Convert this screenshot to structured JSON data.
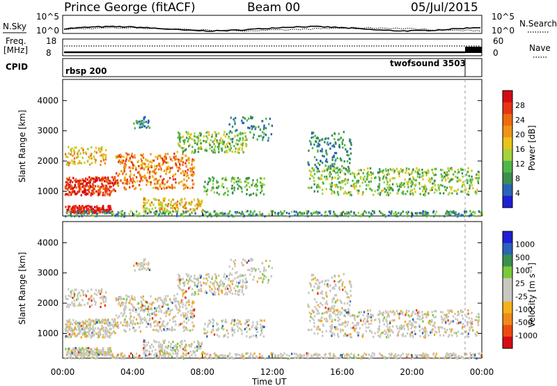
{
  "header": {
    "station": "Prince George (fitACF)",
    "beam": "Beam 00",
    "date": "05/Jul/2015"
  },
  "top_panels": {
    "nsky_label": "N.Sky",
    "nsky_axis": {
      "top": "10^5",
      "bottom": "10^0"
    },
    "nsearch_label": "N.Search",
    "nsearch_axis": {
      "top": "10^5",
      "bottom": "10^0"
    },
    "freq_label_1": "Freq.",
    "freq_label_2": "[MHz]",
    "freq_axis": {
      "top": "18",
      "bottom": "8"
    },
    "nave_label": "Nave",
    "nave_axis": {
      "top": "60",
      "bottom": "0"
    },
    "cpid_label": "CPID",
    "cpid_left": "rbsp 200",
    "cpid_right": "twofsound 3503"
  },
  "chart_data": [
    {
      "type": "heatmap",
      "name": "power",
      "ylabel": "Slant Range [km]",
      "yticks": [
        "1000",
        "2000",
        "3000",
        "4000"
      ],
      "ylim": [
        180,
        4700
      ],
      "xlim": [
        0,
        24
      ],
      "colorbar": {
        "label": "Power [dB]",
        "ticks": [
          "4",
          "8",
          "12",
          "16",
          "20",
          "24",
          "28"
        ],
        "colors": [
          "#1f1fd6",
          "#2a64b8",
          "#3a8f4e",
          "#4fb74a",
          "#a6d23c",
          "#e8c31a",
          "#f0931a",
          "#f06a10",
          "#e83412",
          "#d60a14"
        ]
      }
    },
    {
      "type": "heatmap",
      "name": "velocity",
      "ylabel": "Slant Range [km]",
      "yticks": [
        "1000",
        "2000",
        "3000",
        "4000"
      ],
      "ylim": [
        180,
        4700
      ],
      "xlim": [
        0,
        24
      ],
      "xlabel": "Time UT",
      "xticks": [
        "00:00",
        "04:00",
        "08:00",
        "12:00",
        "16:00",
        "20:00",
        "00:00"
      ],
      "colorbar": {
        "label": "Velocity [m s⁻¹]",
        "ticks": [
          "1000",
          "500",
          "100",
          "25",
          "-25",
          "-100",
          "-500",
          "-1000"
        ],
        "colors": [
          "#1f1fd6",
          "#2a64b8",
          "#3a8f4e",
          "#79c93a",
          "#c8c8c0",
          "#c8c8c0",
          "#f5b21a",
          "#f08a1a",
          "#f04a10",
          "#d60a14"
        ]
      }
    }
  ]
}
